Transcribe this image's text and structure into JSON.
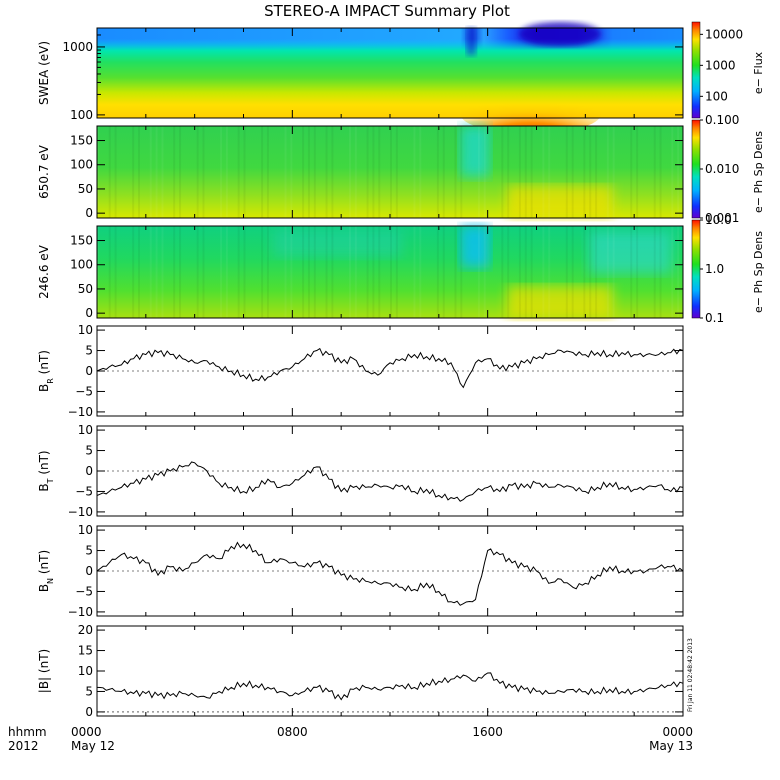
{
  "title": "STEREO-A IMPACT Summary Plot",
  "timestamp": "Fri Jan 11 02:48:42 2013",
  "footer": {
    "left_line1": "hhmm",
    "left_line2": "2012",
    "x_ticks": [
      {
        "hour": 0,
        "line1": "0000",
        "line2": "May 12"
      },
      {
        "hour": 8,
        "line1": "0800",
        "line2": ""
      },
      {
        "hour": 16,
        "line1": "1600",
        "line2": ""
      },
      {
        "hour": 24,
        "line1": "0000",
        "line2": "May 13"
      }
    ]
  },
  "colors": {
    "line": "#000000",
    "background": "#ffffff"
  },
  "chart_data": [
    {
      "type": "heatmap",
      "id": "swea",
      "ylabel": "SWEA (eV)",
      "yscale": "log",
      "ylim": [
        90,
        1900
      ],
      "yticks": [
        {
          "v": 100,
          "label": "100"
        },
        {
          "v": 1000,
          "label": "1000"
        }
      ],
      "colorbar": {
        "label": "e− Flux",
        "scale": "log",
        "range": [
          20,
          25000
        ],
        "ticks": [
          {
            "v": 100,
            "label": "100"
          },
          {
            "v": 1000,
            "label": "1000"
          },
          {
            "v": 10000,
            "label": "10000"
          }
        ]
      }
    },
    {
      "type": "heatmap",
      "id": "pad650",
      "ylabel": "650.7 eV",
      "yscale": "linear",
      "ylim": [
        -10,
        180
      ],
      "yticks": [
        {
          "v": 0,
          "label": "0"
        },
        {
          "v": 50,
          "label": "50"
        },
        {
          "v": 100,
          "label": "100"
        },
        {
          "v": 150,
          "label": "150"
        }
      ],
      "colorbar": {
        "label": "e− Ph Sp Dens",
        "scale": "log",
        "range": [
          0.001,
          0.1
        ],
        "ticks": [
          {
            "v": 0.001,
            "label": "0.001"
          },
          {
            "v": 0.01,
            "label": "0.010"
          },
          {
            "v": 0.1,
            "label": "0.100"
          }
        ]
      }
    },
    {
      "type": "heatmap",
      "id": "pad246",
      "ylabel": "246.6 eV",
      "yscale": "linear",
      "ylim": [
        -10,
        180
      ],
      "yticks": [
        {
          "v": 0,
          "label": "0"
        },
        {
          "v": 50,
          "label": "50"
        },
        {
          "v": 100,
          "label": "100"
        },
        {
          "v": 150,
          "label": "150"
        }
      ],
      "colorbar": {
        "label": "e− Ph Sp Dens",
        "scale": "log",
        "range": [
          0.1,
          10
        ],
        "ticks": [
          {
            "v": 0.1,
            "label": "0.1"
          },
          {
            "v": 1,
            "label": "1.0"
          },
          {
            "v": 10,
            "label": "10.0"
          }
        ]
      }
    },
    {
      "type": "line",
      "id": "br",
      "ylabel_main": "B",
      "ylabel_sub": "R",
      "ylabel_unit": "(nT)",
      "ylim": [
        -11,
        11
      ],
      "yticks": [
        {
          "v": -10,
          "label": "−10"
        },
        {
          "v": -5,
          "label": "−5"
        },
        {
          "v": 0,
          "label": "0"
        },
        {
          "v": 5,
          "label": "5"
        },
        {
          "v": 10,
          "label": "10"
        }
      ],
      "x": [
        0,
        0.5,
        1,
        1.5,
        2,
        2.5,
        3,
        3.5,
        4,
        4.5,
        5,
        5.5,
        6,
        6.5,
        7,
        7.5,
        8,
        8.5,
        9,
        9.5,
        10,
        10.5,
        11,
        11.5,
        12,
        12.5,
        13,
        13.5,
        14,
        14.5,
        15,
        15.5,
        16,
        16.5,
        17,
        17.5,
        18,
        18.5,
        19,
        19.5,
        20,
        20.5,
        21,
        21.5,
        22,
        22.5,
        23,
        23.5,
        24
      ],
      "values": [
        0,
        1,
        1.5,
        3,
        4,
        4.5,
        4,
        3,
        2,
        2.5,
        1,
        0,
        -1,
        -2,
        -1.5,
        0,
        1,
        3,
        5,
        4,
        2,
        3,
        0,
        -1,
        2,
        3,
        4,
        3.5,
        3,
        2,
        -4,
        2,
        3,
        0.5,
        1,
        2,
        3,
        4,
        5,
        4.5,
        4,
        4.5,
        4,
        4.5,
        4,
        4,
        4,
        4.5,
        5
      ]
    },
    {
      "type": "line",
      "id": "bt",
      "ylabel_main": "B",
      "ylabel_sub": "T",
      "ylabel_unit": "(nT)",
      "ylim": [
        -11,
        11
      ],
      "yticks": [
        {
          "v": -10,
          "label": "−10"
        },
        {
          "v": -5,
          "label": "−5"
        },
        {
          "v": 0,
          "label": "0"
        },
        {
          "v": 5,
          "label": "5"
        },
        {
          "v": 10,
          "label": "10"
        }
      ],
      "x": [
        0,
        0.5,
        1,
        1.5,
        2,
        2.5,
        3,
        3.5,
        4,
        4.5,
        5,
        5.5,
        6,
        6.5,
        7,
        7.5,
        8,
        8.5,
        9,
        9.5,
        10,
        10.5,
        11,
        11.5,
        12,
        12.5,
        13,
        13.5,
        14,
        14.5,
        15,
        15.5,
        16,
        16.5,
        17,
        17.5,
        18,
        18.5,
        19,
        19.5,
        20,
        20.5,
        21,
        21.5,
        22,
        22.5,
        23,
        23.5,
        24
      ],
      "values": [
        -6,
        -5,
        -4,
        -3,
        -2,
        -1,
        0,
        1,
        2,
        0,
        -3,
        -4,
        -5,
        -4,
        -2,
        -4,
        -3,
        -1,
        1,
        -2,
        -5,
        -4,
        -4,
        -3.5,
        -4,
        -3.5,
        -5,
        -4.5,
        -6,
        -6.5,
        -7,
        -5,
        -4,
        -5,
        -3.5,
        -4,
        -3,
        -4,
        -3.5,
        -4,
        -5,
        -4,
        -3,
        -4,
        -4.5,
        -4,
        -3.5,
        -5,
        -4
      ]
    },
    {
      "type": "line",
      "id": "bn",
      "ylabel_main": "B",
      "ylabel_sub": "N",
      "ylabel_unit": "(nT)",
      "ylim": [
        -11,
        11
      ],
      "yticks": [
        {
          "v": -10,
          "label": "−10"
        },
        {
          "v": -5,
          "label": "−5"
        },
        {
          "v": 0,
          "label": "0"
        },
        {
          "v": 5,
          "label": "5"
        },
        {
          "v": 10,
          "label": "10"
        }
      ],
      "x": [
        0,
        0.5,
        1,
        1.5,
        2,
        2.5,
        3,
        3.5,
        4,
        4.5,
        5,
        5.5,
        6,
        6.5,
        7,
        7.5,
        8,
        8.5,
        9,
        9.5,
        10,
        10.5,
        11,
        11.5,
        12,
        12.5,
        13,
        13.5,
        14,
        14.5,
        15,
        15.5,
        16,
        16.5,
        17,
        17.5,
        18,
        18.5,
        19,
        19.5,
        20,
        20.5,
        21,
        21.5,
        22,
        22.5,
        23,
        23.5,
        24
      ],
      "values": [
        0,
        2,
        4,
        3,
        2,
        -1,
        1,
        0,
        2,
        4,
        3,
        6,
        6.5,
        5,
        2,
        3,
        2,
        1,
        2,
        1,
        -1,
        -2,
        -2.5,
        -3,
        -3,
        -4,
        -4.5,
        -3,
        -5,
        -7.5,
        -8,
        -7,
        5,
        4,
        2,
        1,
        0,
        -3,
        -2,
        -4,
        -3,
        -1,
        1,
        0,
        0,
        0,
        1,
        1,
        0
      ]
    },
    {
      "type": "line",
      "id": "bmag",
      "ylabel_main": "|B|",
      "ylabel_sub": "",
      "ylabel_unit": "(nT)",
      "ylim": [
        -1,
        21
      ],
      "yticks": [
        {
          "v": 0,
          "label": "0"
        },
        {
          "v": 5,
          "label": "5"
        },
        {
          "v": 10,
          "label": "10"
        },
        {
          "v": 15,
          "label": "15"
        },
        {
          "v": 20,
          "label": "20"
        }
      ],
      "x": [
        0,
        0.5,
        1,
        1.5,
        2,
        2.5,
        3,
        3.5,
        4,
        4.5,
        5,
        5.5,
        6,
        6.5,
        7,
        7.5,
        8,
        8.5,
        9,
        9.5,
        10,
        10.5,
        11,
        11.5,
        12,
        12.5,
        13,
        13.5,
        14,
        14.5,
        15,
        15.5,
        16,
        16.5,
        17,
        17.5,
        18,
        18.5,
        19,
        19.5,
        20,
        20.5,
        21,
        21.5,
        22,
        22.5,
        23,
        23.5,
        24
      ],
      "values": [
        6,
        5.5,
        5,
        4.5,
        4.5,
        4,
        4,
        4.5,
        4,
        3.5,
        5,
        6,
        7,
        6.5,
        6,
        5,
        4,
        5,
        6,
        5,
        3,
        5.5,
        6,
        5.5,
        6,
        6.5,
        6,
        7,
        7.5,
        8,
        9,
        7.5,
        9.5,
        7,
        6,
        5.5,
        5,
        4.5,
        5,
        5.5,
        5,
        5,
        5.5,
        5,
        5,
        5.5,
        6,
        6.5,
        7
      ]
    }
  ]
}
